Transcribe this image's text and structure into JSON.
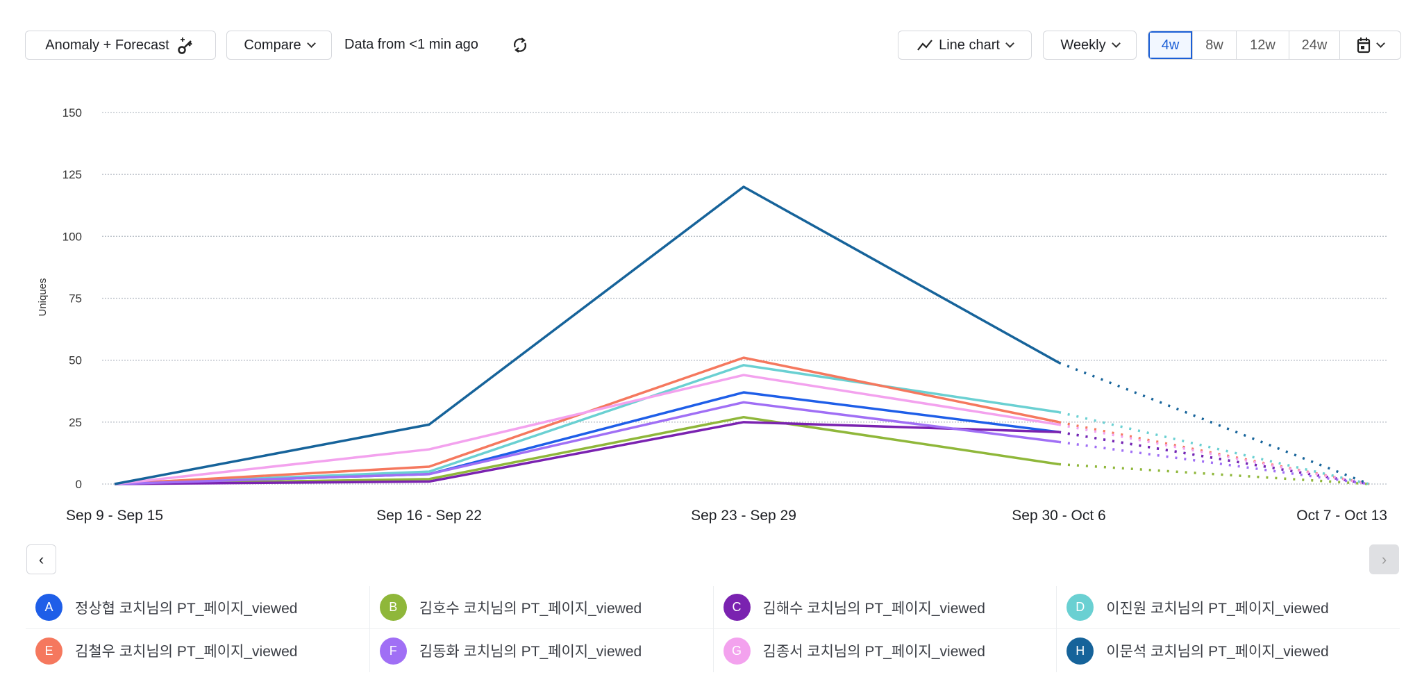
{
  "toolbar": {
    "anomaly_label": "Anomaly + Forecast",
    "compare_label": "Compare",
    "data_status": "Data from <1 min ago",
    "chart_type_label": "Line chart",
    "interval_label": "Weekly",
    "ranges": [
      "4w",
      "8w",
      "12w",
      "24w"
    ],
    "active_range": "4w"
  },
  "chart_data": {
    "type": "line",
    "ylabel": "Uniques",
    "ylim": [
      0,
      150
    ],
    "yticks": [
      0,
      25,
      50,
      75,
      100,
      125,
      150
    ],
    "grid": true,
    "categories": [
      "Sep 9 - Sep 15",
      "Sep 16 - Sep 22",
      "Sep 23 - Sep 29",
      "Sep 30 - Oct 6",
      "Oct 7 - Oct 13"
    ],
    "forecast_from": "Sep 30 - Oct 6",
    "series": [
      {
        "letter": "A",
        "name": "정상협 코치님의 PT_페이지_viewed",
        "color": "#1e5ee8",
        "values": [
          0,
          4,
          37,
          21,
          0
        ]
      },
      {
        "letter": "B",
        "name": "김호수 코치님의 PT_페이지_viewed",
        "color": "#8fb73a",
        "values": [
          0,
          2,
          27,
          8,
          0
        ]
      },
      {
        "letter": "C",
        "name": "김해수 코치님의 PT_페이지_viewed",
        "color": "#7a22b0",
        "values": [
          0,
          1,
          25,
          21,
          0
        ]
      },
      {
        "letter": "D",
        "name": "이진원 코치님의 PT_페이지_viewed",
        "color": "#6ad0d2",
        "values": [
          0,
          5,
          48,
          29,
          0
        ]
      },
      {
        "letter": "E",
        "name": "김철우 코치님의 PT_페이지_viewed",
        "color": "#f5785e",
        "values": [
          0,
          7,
          51,
          25,
          0
        ]
      },
      {
        "letter": "F",
        "name": "김동화 코치님의 PT_페이지_viewed",
        "color": "#a06ff5",
        "values": [
          0,
          4,
          33,
          17,
          0
        ]
      },
      {
        "letter": "G",
        "name": "김종서 코치님의 PT_페이지_viewed",
        "color": "#f3a2ee",
        "values": [
          0,
          14,
          44,
          24,
          0
        ]
      },
      {
        "letter": "H",
        "name": "이문석 코치님의 PT_페이지_viewed",
        "color": "#16639a",
        "values": [
          0,
          24,
          120,
          49,
          0
        ]
      }
    ]
  }
}
